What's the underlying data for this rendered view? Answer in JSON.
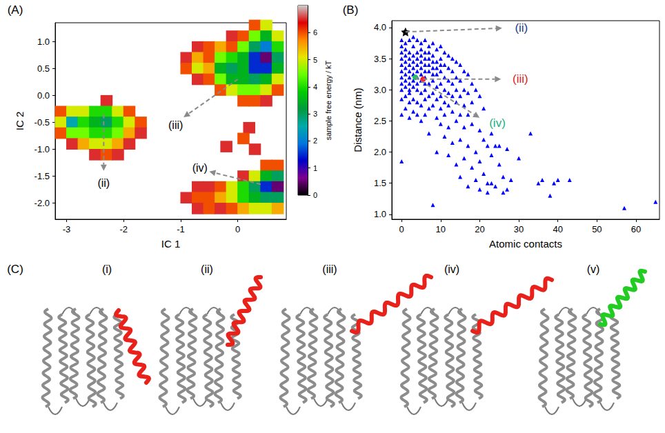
{
  "chart_data": [
    {
      "type": "heatmap",
      "panel": "(A)",
      "x_label": "IC 1",
      "y_label": "IC 2",
      "xlim": [
        -3.2,
        0.85
      ],
      "xticks": [
        -3,
        -2,
        -1,
        0
      ],
      "ylim": [
        -2.3,
        1.35
      ],
      "yticks": [
        {
          "value": -2.0,
          "label": "-2.0"
        },
        {
          "value": -1.5,
          "label": "-1.5"
        },
        {
          "value": -1.0,
          "label": "-1.0"
        },
        {
          "value": -0.5,
          "label": "-0.5"
        },
        {
          "value": 0.0,
          "label": "0.0"
        },
        {
          "value": 0.5,
          "label": "0.5"
        },
        {
          "value": 1.0,
          "label": "1.0"
        }
      ],
      "grid": false,
      "cell_size": [
        0.2,
        0.2
      ],
      "cells": [
        [
          -2.3,
          -0.1,
          6.5
        ],
        [
          -3.1,
          -0.3,
          6
        ],
        [
          -2.9,
          -0.3,
          5
        ],
        [
          -2.7,
          -0.3,
          5
        ],
        [
          -2.5,
          -0.3,
          4
        ],
        [
          -2.3,
          -0.3,
          4
        ],
        [
          -2.1,
          -0.3,
          5
        ],
        [
          -1.9,
          -0.3,
          6
        ],
        [
          -3.1,
          -0.5,
          5
        ],
        [
          -2.9,
          -0.5,
          2.5
        ],
        [
          -2.7,
          -0.5,
          4
        ],
        [
          -2.5,
          -0.5,
          3.5
        ],
        [
          -2.3,
          -0.5,
          3
        ],
        [
          -2.1,
          -0.5,
          4
        ],
        [
          -1.9,
          -0.5,
          5
        ],
        [
          -1.7,
          -0.5,
          6
        ],
        [
          -3.1,
          -0.7,
          6
        ],
        [
          -2.9,
          -0.7,
          4.5
        ],
        [
          -2.7,
          -0.7,
          4.5
        ],
        [
          -2.5,
          -0.7,
          4
        ],
        [
          -2.3,
          -0.7,
          4
        ],
        [
          -2.1,
          -0.7,
          4.5
        ],
        [
          -1.9,
          -0.7,
          5.5
        ],
        [
          -1.7,
          -0.7,
          6.5
        ],
        [
          -2.9,
          -0.9,
          6.5
        ],
        [
          -2.7,
          -0.9,
          5.5
        ],
        [
          -2.5,
          -0.9,
          5
        ],
        [
          -2.3,
          -0.9,
          5
        ],
        [
          -2.1,
          -0.9,
          5.5
        ],
        [
          -1.9,
          -0.9,
          6.5
        ],
        [
          -2.5,
          -1.1,
          6.5
        ],
        [
          -2.3,
          -1.1,
          6
        ],
        [
          -2.1,
          -1.1,
          6.5
        ],
        [
          0.3,
          1.3,
          6
        ],
        [
          0.5,
          1.3,
          5
        ],
        [
          -0.1,
          1.1,
          6.5
        ],
        [
          0.1,
          1.1,
          6
        ],
        [
          0.3,
          1.1,
          4.5
        ],
        [
          0.5,
          1.1,
          3.5
        ],
        [
          0.7,
          1.1,
          5
        ],
        [
          -0.7,
          0.9,
          6.5
        ],
        [
          -0.5,
          0.9,
          6
        ],
        [
          -0.3,
          0.9,
          5.5
        ],
        [
          -0.1,
          0.9,
          6
        ],
        [
          0.1,
          0.9,
          4.5
        ],
        [
          0.3,
          0.9,
          3
        ],
        [
          0.5,
          0.9,
          2
        ],
        [
          0.7,
          0.9,
          4
        ],
        [
          -0.9,
          0.7,
          6.5
        ],
        [
          -0.7,
          0.7,
          5.5
        ],
        [
          -0.5,
          0.7,
          6
        ],
        [
          -0.3,
          0.7,
          4.5
        ],
        [
          -0.1,
          0.7,
          4
        ],
        [
          0.1,
          0.7,
          3.5
        ],
        [
          0.3,
          0.7,
          1.5
        ],
        [
          0.5,
          0.7,
          0.5
        ],
        [
          0.7,
          0.7,
          3
        ],
        [
          -0.9,
          0.5,
          6
        ],
        [
          -0.7,
          0.5,
          5
        ],
        [
          -0.5,
          0.5,
          5.5
        ],
        [
          -0.3,
          0.5,
          3.5
        ],
        [
          -0.1,
          0.5,
          3
        ],
        [
          0.1,
          0.5,
          3.5
        ],
        [
          0.3,
          0.5,
          1.5
        ],
        [
          0.5,
          0.5,
          1.5
        ],
        [
          0.7,
          0.5,
          3.5
        ],
        [
          -0.7,
          0.3,
          6.5
        ],
        [
          -0.5,
          0.3,
          6
        ],
        [
          -0.3,
          0.3,
          4.5
        ],
        [
          -0.1,
          0.3,
          3.5
        ],
        [
          0.1,
          0.3,
          3.5
        ],
        [
          0.3,
          0.3,
          3
        ],
        [
          0.5,
          0.3,
          3.5
        ],
        [
          0.7,
          0.3,
          5
        ],
        [
          -0.3,
          0.1,
          6
        ],
        [
          -0.1,
          0.1,
          5
        ],
        [
          0.1,
          0.1,
          4.5
        ],
        [
          0.3,
          0.1,
          4.5
        ],
        [
          0.5,
          0.1,
          5
        ],
        [
          0.7,
          0.1,
          6
        ],
        [
          0.1,
          -0.1,
          6
        ],
        [
          0.3,
          -0.1,
          6
        ],
        [
          0.5,
          -0.1,
          6.5
        ],
        [
          0.2,
          -0.6,
          6.5
        ],
        [
          0.1,
          -0.8,
          6
        ],
        [
          0.3,
          -1.0,
          6.5
        ],
        [
          -0.2,
          -0.95,
          6.5
        ],
        [
          0.5,
          -1.3,
          6
        ],
        [
          0.7,
          -1.3,
          6
        ],
        [
          0.1,
          -1.5,
          6.5
        ],
        [
          0.3,
          -1.5,
          5
        ],
        [
          0.5,
          -1.5,
          3.5
        ],
        [
          0.7,
          -1.5,
          3
        ],
        [
          -0.7,
          -1.7,
          6.5
        ],
        [
          -0.5,
          -1.7,
          6.5
        ],
        [
          -0.3,
          -1.7,
          6
        ],
        [
          -0.1,
          -1.7,
          5
        ],
        [
          0.1,
          -1.7,
          4
        ],
        [
          0.3,
          -1.7,
          3
        ],
        [
          0.5,
          -1.7,
          1.5
        ],
        [
          0.7,
          -1.7,
          0.5
        ],
        [
          -0.9,
          -1.9,
          6.5
        ],
        [
          -0.7,
          -1.9,
          6
        ],
        [
          -0.5,
          -1.9,
          6
        ],
        [
          -0.3,
          -1.9,
          5.5
        ],
        [
          -0.1,
          -1.9,
          5
        ],
        [
          0.1,
          -1.9,
          4
        ],
        [
          0.3,
          -1.9,
          3.5
        ],
        [
          0.5,
          -1.9,
          3
        ],
        [
          0.7,
          -1.9,
          3
        ],
        [
          -0.7,
          -2.1,
          6.5
        ],
        [
          -0.5,
          -2.1,
          6
        ],
        [
          -0.3,
          -2.1,
          6.5
        ],
        [
          -0.1,
          -2.1,
          6
        ],
        [
          0.1,
          -2.1,
          5.5
        ],
        [
          0.3,
          -2.1,
          5
        ],
        [
          0.5,
          -2.1,
          5
        ],
        [
          0.7,
          -2.1,
          5.5
        ]
      ],
      "colorbar": {
        "label": "sample free energy / kT",
        "range": [
          0,
          7
        ],
        "ticks": [
          0,
          1,
          2,
          3,
          4,
          5,
          6
        ]
      },
      "annotations": [
        {
          "text": "(ii)",
          "x": -2.35,
          "y": -0.35
        },
        {
          "text": "(iii)",
          "x": 0.0,
          "y": 0.3
        },
        {
          "text": "(iv)",
          "x": 0.4,
          "y": -1.65
        }
      ]
    },
    {
      "type": "scatter",
      "panel": "(B)",
      "x_label": "Atomic contacts",
      "y_label": "Distance (nm)",
      "xlim": [
        -2.5,
        66
      ],
      "xticks": [
        0,
        10,
        20,
        30,
        40,
        50,
        60
      ],
      "ylim": [
        0.92,
        4.11
      ],
      "yticks": [
        {
          "value": 1.0,
          "label": "1.0"
        },
        {
          "value": 1.5,
          "label": "1.5"
        },
        {
          "value": 2.0,
          "label": "2.0"
        },
        {
          "value": 2.5,
          "label": "2.5"
        },
        {
          "value": 3.0,
          "label": "3.0"
        },
        {
          "value": 3.5,
          "label": "3.5"
        },
        {
          "value": 4.0,
          "label": "4.0"
        }
      ],
      "grid": false,
      "color": "#0000ff",
      "marker": "triangle",
      "x": [
        0,
        0,
        0,
        0,
        0,
        0,
        0,
        0,
        0,
        0,
        0,
        0,
        1,
        1,
        1,
        1,
        1,
        1,
        1,
        1,
        1,
        1,
        2,
        2,
        2,
        2,
        2,
        2,
        2,
        2,
        2,
        2,
        2,
        3,
        3,
        3,
        3,
        3,
        3,
        3,
        3,
        3,
        3,
        4,
        4,
        4,
        4,
        4,
        4,
        4,
        4,
        4,
        4,
        5,
        5,
        5,
        5,
        5,
        5,
        5,
        5,
        5,
        5,
        6,
        6,
        6,
        6,
        6,
        6,
        6,
        6,
        6,
        6,
        7,
        7,
        7,
        7,
        7,
        7,
        7,
        7,
        7,
        8,
        8,
        8,
        8,
        8,
        8,
        8,
        8,
        8,
        9,
        9,
        9,
        9,
        9,
        9,
        9,
        9,
        10,
        10,
        10,
        10,
        10,
        10,
        10,
        10,
        11,
        11,
        11,
        11,
        11,
        11,
        11,
        12,
        12,
        12,
        12,
        12,
        12,
        12,
        13,
        13,
        13,
        13,
        13,
        13,
        14,
        14,
        14,
        14,
        14,
        14,
        15,
        15,
        15,
        15,
        15,
        15,
        16,
        16,
        16,
        16,
        16,
        17,
        17,
        17,
        17,
        17,
        18,
        18,
        18,
        18,
        19,
        19,
        19,
        19,
        20,
        20,
        20,
        20,
        21,
        21,
        21,
        22,
        22,
        22,
        23,
        23,
        23,
        24,
        24,
        25,
        25,
        26,
        26,
        27,
        27,
        28,
        30,
        33,
        35,
        36,
        38,
        39,
        40,
        43,
        57,
        65
      ],
      "values": [
        3.8,
        3.6,
        3.4,
        3.2,
        3.0,
        2.85,
        2.6,
        1.85,
        3.7,
        3.5,
        3.3,
        3.1,
        3.75,
        3.55,
        3.45,
        3.25,
        3.05,
        2.9,
        2.7,
        3.65,
        3.35,
        3.15,
        3.8,
        3.6,
        3.4,
        3.2,
        3.0,
        2.8,
        3.5,
        3.3,
        3.1,
        2.95,
        2.55,
        3.85,
        3.7,
        3.45,
        3.25,
        3.05,
        2.85,
        2.65,
        3.55,
        3.35,
        3.15,
        3.8,
        3.6,
        3.4,
        3.2,
        3.0,
        2.8,
        2.6,
        3.5,
        3.3,
        3.1,
        3.75,
        3.55,
        3.35,
        3.15,
        2.95,
        2.75,
        3.65,
        3.45,
        3.25,
        2.5,
        3.8,
        3.6,
        3.4,
        3.2,
        3.0,
        2.85,
        2.6,
        3.5,
        3.3,
        3.1,
        3.7,
        3.5,
        3.3,
        3.1,
        2.9,
        2.7,
        3.6,
        3.4,
        2.3,
        3.75,
        3.55,
        3.35,
        3.15,
        2.95,
        2.75,
        3.45,
        3.25,
        1.15,
        3.65,
        3.45,
        3.25,
        3.05,
        2.85,
        2.55,
        3.35,
        2.0,
        3.7,
        3.5,
        3.3,
        3.1,
        2.9,
        2.7,
        3.4,
        2.45,
        3.6,
        3.4,
        3.2,
        3.0,
        2.8,
        2.6,
        2.25,
        3.55,
        3.35,
        3.15,
        2.95,
        2.75,
        2.4,
        1.95,
        3.5,
        3.3,
        3.1,
        2.9,
        2.65,
        2.15,
        3.45,
        3.2,
        3.0,
        2.8,
        2.5,
        1.8,
        3.4,
        3.15,
        2.9,
        2.6,
        2.2,
        1.6,
        3.3,
        3.0,
        2.75,
        2.4,
        1.9,
        3.25,
        2.95,
        2.6,
        2.1,
        1.45,
        3.1,
        2.8,
        2.45,
        1.75,
        3.0,
        2.6,
        2.0,
        1.55,
        2.9,
        2.35,
        1.85,
        1.4,
        2.7,
        2.2,
        1.65,
        2.1,
        1.5,
        1.35,
        2.3,
        1.5,
        1.95,
        2.1,
        1.45,
        1.8,
        2.1,
        1.6,
        1.35,
        1.4,
        2.05,
        1.55,
        1.9,
        2.3,
        1.5,
        1.55,
        1.3,
        1.5,
        1.55,
        1.55,
        1.1,
        1.2
      ],
      "highlights": [
        {
          "text": "(ii)",
          "x": 1,
          "y": 3.93,
          "color": "#000000",
          "marker": "star"
        },
        {
          "text": "(iii)",
          "x": 5.5,
          "y": 3.17,
          "color": "#ff2020",
          "marker": "circle"
        },
        {
          "text": "(iv)",
          "x": 3.5,
          "y": 3.2,
          "color": "#20c060",
          "marker": "circle"
        }
      ]
    }
  ],
  "structures_panel": {
    "panel": "(C)",
    "items": [
      {
        "label": "(i)",
        "color": "#e8221a"
      },
      {
        "label": "(ii)",
        "color": "#e8221a"
      },
      {
        "label": "(iii)",
        "color": "#e8221a"
      },
      {
        "label": "(iv)",
        "color": "#e8221a"
      },
      {
        "label": "(v)",
        "color": "#22cc22"
      }
    ]
  }
}
